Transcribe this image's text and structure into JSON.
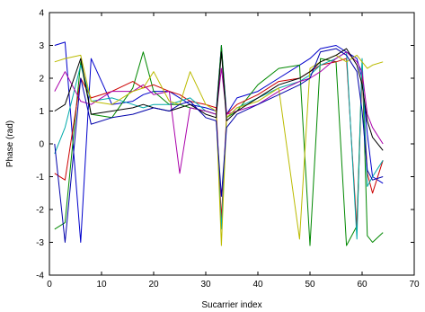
{
  "chart_data": {
    "type": "line",
    "title": "",
    "xlabel": "Sucarrier index",
    "ylabel": "Phase (rad)",
    "xlim": [
      0,
      70
    ],
    "ylim": [
      -4,
      4
    ],
    "xticks": [
      0,
      10,
      20,
      30,
      40,
      50,
      60,
      70
    ],
    "yticks": [
      -4,
      -3,
      -2,
      -1,
      0,
      1,
      2,
      3,
      4
    ],
    "grid": false,
    "legend": "none",
    "x": [
      1,
      3,
      6,
      8,
      12,
      16,
      18,
      20,
      23,
      25,
      27,
      30,
      32,
      33,
      34,
      36,
      40,
      44,
      48,
      50,
      52,
      55,
      57,
      59,
      60,
      61,
      62,
      64
    ],
    "series": [
      {
        "color": "#0000cc",
        "values": [
          3.0,
          3.1,
          -3.0,
          2.6,
          1.2,
          1.3,
          1.5,
          1.6,
          1.6,
          1.4,
          1.2,
          1.1,
          1.0,
          3.0,
          0.9,
          1.4,
          1.6,
          2.0,
          2.4,
          2.6,
          2.9,
          3.0,
          2.8,
          2.6,
          2.0,
          0.3,
          -1.0,
          -1.2
        ]
      },
      {
        "color": "#008800",
        "values": [
          -2.6,
          -2.4,
          2.5,
          0.9,
          0.8,
          1.7,
          2.8,
          1.6,
          1.2,
          1.2,
          1.1,
          1.0,
          0.9,
          3.0,
          0.8,
          1.0,
          1.8,
          2.3,
          2.4,
          -3.1,
          2.6,
          2.5,
          -3.1,
          -2.5,
          2.5,
          -2.8,
          -3.0,
          -2.7
        ]
      },
      {
        "color": "#cc0000",
        "values": [
          -0.9,
          -1.1,
          2.0,
          1.4,
          1.6,
          1.9,
          1.7,
          1.8,
          1.6,
          1.5,
          1.3,
          1.2,
          1.1,
          -2.3,
          0.9,
          1.2,
          1.5,
          1.9,
          2.0,
          2.2,
          2.4,
          2.5,
          2.6,
          -2.6,
          2.2,
          -0.9,
          -1.5,
          -0.5
        ]
      },
      {
        "color": "#00aaaa",
        "values": [
          -0.3,
          0.5,
          2.4,
          1.3,
          1.4,
          1.2,
          1.1,
          1.2,
          1.2,
          1.3,
          1.4,
          1.0,
          0.9,
          -2.6,
          0.8,
          1.1,
          1.4,
          1.7,
          1.9,
          2.1,
          2.4,
          2.6,
          2.8,
          -2.9,
          2.6,
          -1.3,
          -1.0,
          -0.5
        ]
      },
      {
        "color": "#aa00aa",
        "values": [
          1.6,
          2.2,
          1.3,
          1.2,
          1.6,
          1.6,
          1.8,
          1.5,
          1.6,
          -0.9,
          1.1,
          1.0,
          0.9,
          2.3,
          0.9,
          1.0,
          1.2,
          1.6,
          1.9,
          2.0,
          2.2,
          2.6,
          2.8,
          2.5,
          2.2,
          0.9,
          0.5,
          0.0
        ]
      },
      {
        "color": "#bbbb00",
        "values": [
          2.5,
          2.6,
          2.7,
          1.3,
          1.2,
          1.6,
          1.7,
          2.2,
          1.3,
          1.2,
          2.2,
          1.2,
          1.0,
          -3.1,
          0.8,
          1.1,
          1.3,
          1.7,
          -2.9,
          2.3,
          2.5,
          2.7,
          2.5,
          2.7,
          2.5,
          2.3,
          2.4,
          2.5
        ]
      },
      {
        "color": "#000000",
        "values": [
          1.0,
          1.2,
          2.6,
          0.9,
          1.0,
          1.1,
          1.2,
          1.1,
          1.0,
          1.1,
          1.2,
          0.9,
          0.8,
          2.8,
          0.7,
          1.0,
          1.4,
          1.8,
          2.0,
          2.2,
          2.5,
          2.7,
          2.9,
          2.4,
          1.8,
          0.7,
          0.2,
          -0.2
        ]
      },
      {
        "color": "#0000aa",
        "values": [
          0.0,
          -3.0,
          2.0,
          0.6,
          0.8,
          0.9,
          1.0,
          1.1,
          1.0,
          1.2,
          1.3,
          0.8,
          0.7,
          -1.6,
          0.5,
          0.9,
          1.2,
          1.5,
          1.8,
          2.0,
          2.8,
          2.9,
          2.7,
          2.2,
          1.0,
          -0.8,
          -1.1,
          -1.0
        ]
      }
    ]
  }
}
